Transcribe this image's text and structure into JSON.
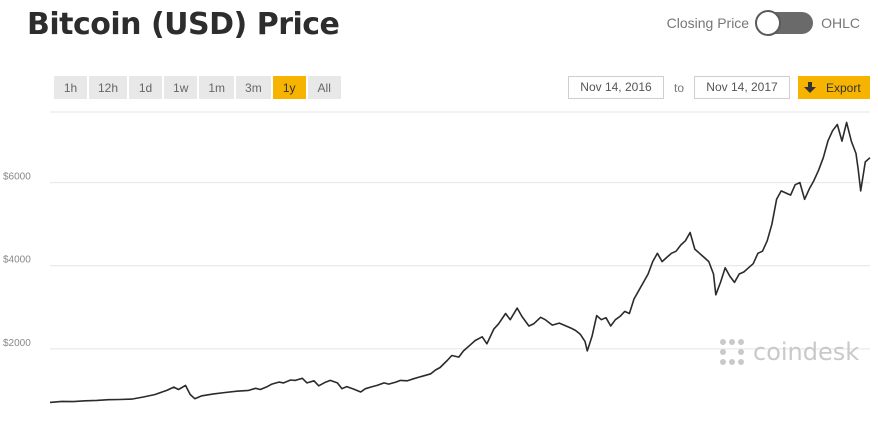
{
  "header": {
    "title": "Bitcoin (USD) Price",
    "toggle_left_label": "Closing Price",
    "toggle_right_label": "OHLC"
  },
  "ranges": [
    {
      "label": "1h",
      "active": false
    },
    {
      "label": "12h",
      "active": false
    },
    {
      "label": "1d",
      "active": false
    },
    {
      "label": "1w",
      "active": false
    },
    {
      "label": "1m",
      "active": false
    },
    {
      "label": "3m",
      "active": false
    },
    {
      "label": "1y",
      "active": true
    },
    {
      "label": "All",
      "active": false
    }
  ],
  "dates": {
    "from": "Nov 14, 2016",
    "to_label": "to",
    "to": "Nov 14, 2017",
    "export_label": "Export"
  },
  "colors": {
    "accent": "#f6b400",
    "line": "#2b2b2b",
    "grid": "#e4e4e4"
  },
  "watermark": {
    "text": "coindesk"
  },
  "chart_data": {
    "type": "line",
    "title": "Bitcoin (USD) Price",
    "xlabel": "",
    "ylabel": "",
    "x_range": [
      "2016-11-14",
      "2017-11-14"
    ],
    "ylim": [
      600,
      7700
    ],
    "yticks": [
      {
        "value": 2000,
        "label": "$2000"
      },
      {
        "value": 4000,
        "label": "$4000"
      },
      {
        "value": 6000,
        "label": "$6000"
      }
    ],
    "grid": true,
    "legend": "none",
    "series": [
      {
        "values": [
          [
            0,
            710
          ],
          [
            5,
            735
          ],
          [
            10,
            730
          ],
          [
            15,
            750
          ],
          [
            20,
            760
          ],
          [
            25,
            775
          ],
          [
            30,
            780
          ],
          [
            35,
            790
          ],
          [
            40,
            840
          ],
          [
            45,
            900
          ],
          [
            48,
            960
          ],
          [
            50,
            1000
          ],
          [
            53,
            1080
          ],
          [
            55,
            1020
          ],
          [
            58,
            1120
          ],
          [
            60,
            900
          ],
          [
            62,
            800
          ],
          [
            65,
            870
          ],
          [
            70,
            915
          ],
          [
            75,
            950
          ],
          [
            80,
            980
          ],
          [
            85,
            1000
          ],
          [
            88,
            1050
          ],
          [
            90,
            1020
          ],
          [
            93,
            1090
          ],
          [
            95,
            1150
          ],
          [
            98,
            1200
          ],
          [
            100,
            1180
          ],
          [
            103,
            1250
          ],
          [
            105,
            1240
          ],
          [
            108,
            1290
          ],
          [
            110,
            1180
          ],
          [
            113,
            1230
          ],
          [
            115,
            1110
          ],
          [
            118,
            1200
          ],
          [
            120,
            1240
          ],
          [
            123,
            1180
          ],
          [
            125,
            1040
          ],
          [
            127,
            1090
          ],
          [
            130,
            1030
          ],
          [
            133,
            960
          ],
          [
            135,
            1040
          ],
          [
            138,
            1090
          ],
          [
            140,
            1120
          ],
          [
            143,
            1180
          ],
          [
            145,
            1150
          ],
          [
            148,
            1200
          ],
          [
            150,
            1240
          ],
          [
            153,
            1230
          ],
          [
            155,
            1270
          ],
          [
            158,
            1320
          ],
          [
            160,
            1350
          ],
          [
            163,
            1400
          ],
          [
            165,
            1490
          ],
          [
            167,
            1550
          ],
          [
            170,
            1720
          ],
          [
            172,
            1840
          ],
          [
            175,
            1800
          ],
          [
            177,
            1950
          ],
          [
            180,
            2100
          ],
          [
            182,
            2200
          ],
          [
            185,
            2290
          ],
          [
            187,
            2120
          ],
          [
            190,
            2480
          ],
          [
            192,
            2600
          ],
          [
            195,
            2850
          ],
          [
            197,
            2700
          ],
          [
            200,
            2980
          ],
          [
            202,
            2780
          ],
          [
            205,
            2550
          ],
          [
            207,
            2600
          ],
          [
            210,
            2760
          ],
          [
            212,
            2700
          ],
          [
            215,
            2570
          ],
          [
            218,
            2620
          ],
          [
            220,
            2570
          ],
          [
            223,
            2500
          ],
          [
            225,
            2440
          ],
          [
            227,
            2350
          ],
          [
            229,
            2180
          ],
          [
            230,
            1950
          ],
          [
            232,
            2300
          ],
          [
            234,
            2800
          ],
          [
            236,
            2700
          ],
          [
            238,
            2750
          ],
          [
            240,
            2550
          ],
          [
            242,
            2700
          ],
          [
            244,
            2780
          ],
          [
            246,
            2900
          ],
          [
            248,
            2850
          ],
          [
            250,
            3200
          ],
          [
            252,
            3400
          ],
          [
            254,
            3600
          ],
          [
            256,
            3800
          ],
          [
            258,
            4100
          ],
          [
            260,
            4300
          ],
          [
            262,
            4100
          ],
          [
            264,
            4200
          ],
          [
            266,
            4300
          ],
          [
            268,
            4350
          ],
          [
            270,
            4500
          ],
          [
            272,
            4600
          ],
          [
            274,
            4800
          ],
          [
            276,
            4400
          ],
          [
            278,
            4300
          ],
          [
            280,
            4200
          ],
          [
            282,
            4100
          ],
          [
            284,
            3800
          ],
          [
            285,
            3300
          ],
          [
            287,
            3600
          ],
          [
            289,
            3950
          ],
          [
            291,
            3750
          ],
          [
            293,
            3600
          ],
          [
            295,
            3800
          ],
          [
            297,
            3850
          ],
          [
            299,
            3950
          ],
          [
            301,
            4050
          ],
          [
            303,
            4300
          ],
          [
            305,
            4350
          ],
          [
            307,
            4600
          ],
          [
            309,
            5000
          ],
          [
            311,
            5600
          ],
          [
            313,
            5800
          ],
          [
            315,
            5750
          ],
          [
            317,
            5700
          ],
          [
            319,
            5950
          ],
          [
            321,
            6000
          ],
          [
            323,
            5600
          ],
          [
            325,
            5850
          ],
          [
            327,
            6050
          ],
          [
            329,
            6300
          ],
          [
            331,
            6600
          ],
          [
            333,
            7000
          ],
          [
            335,
            7250
          ],
          [
            337,
            7400
          ],
          [
            339,
            7000
          ],
          [
            341,
            7450
          ],
          [
            343,
            7000
          ],
          [
            345,
            6700
          ],
          [
            346,
            6300
          ],
          [
            347,
            5800
          ],
          [
            349,
            6500
          ],
          [
            351,
            6600
          ]
        ]
      }
    ]
  }
}
